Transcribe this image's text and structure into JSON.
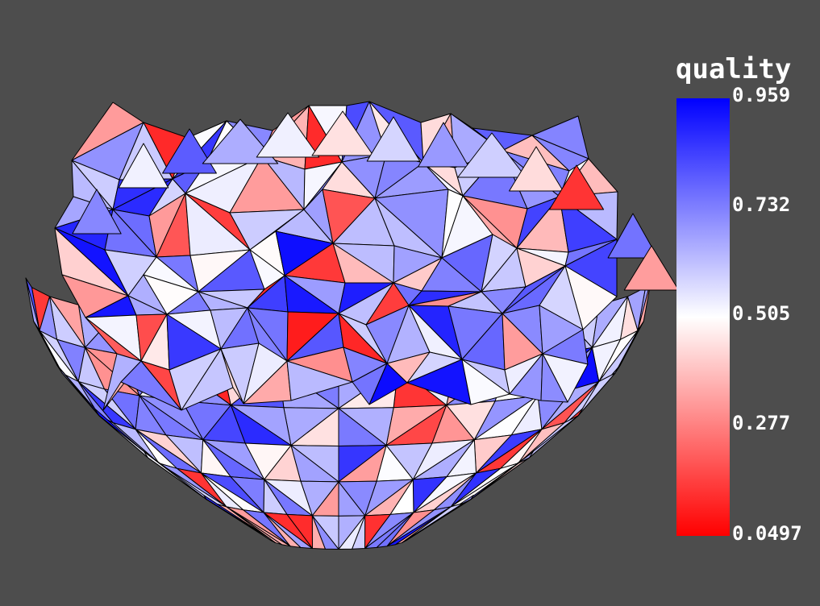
{
  "scalar_bar": {
    "title": "quality",
    "range": [
      0.0497,
      0.959
    ],
    "colormap": [
      "#ff0000",
      "#ffffff",
      "#0000ff"
    ],
    "tick_labels": [
      "0.959",
      "0.732",
      "0.505",
      "0.277",
      "0.0497"
    ]
  },
  "colors": {
    "background": "#4d4d4d",
    "edge": "#000000"
  }
}
